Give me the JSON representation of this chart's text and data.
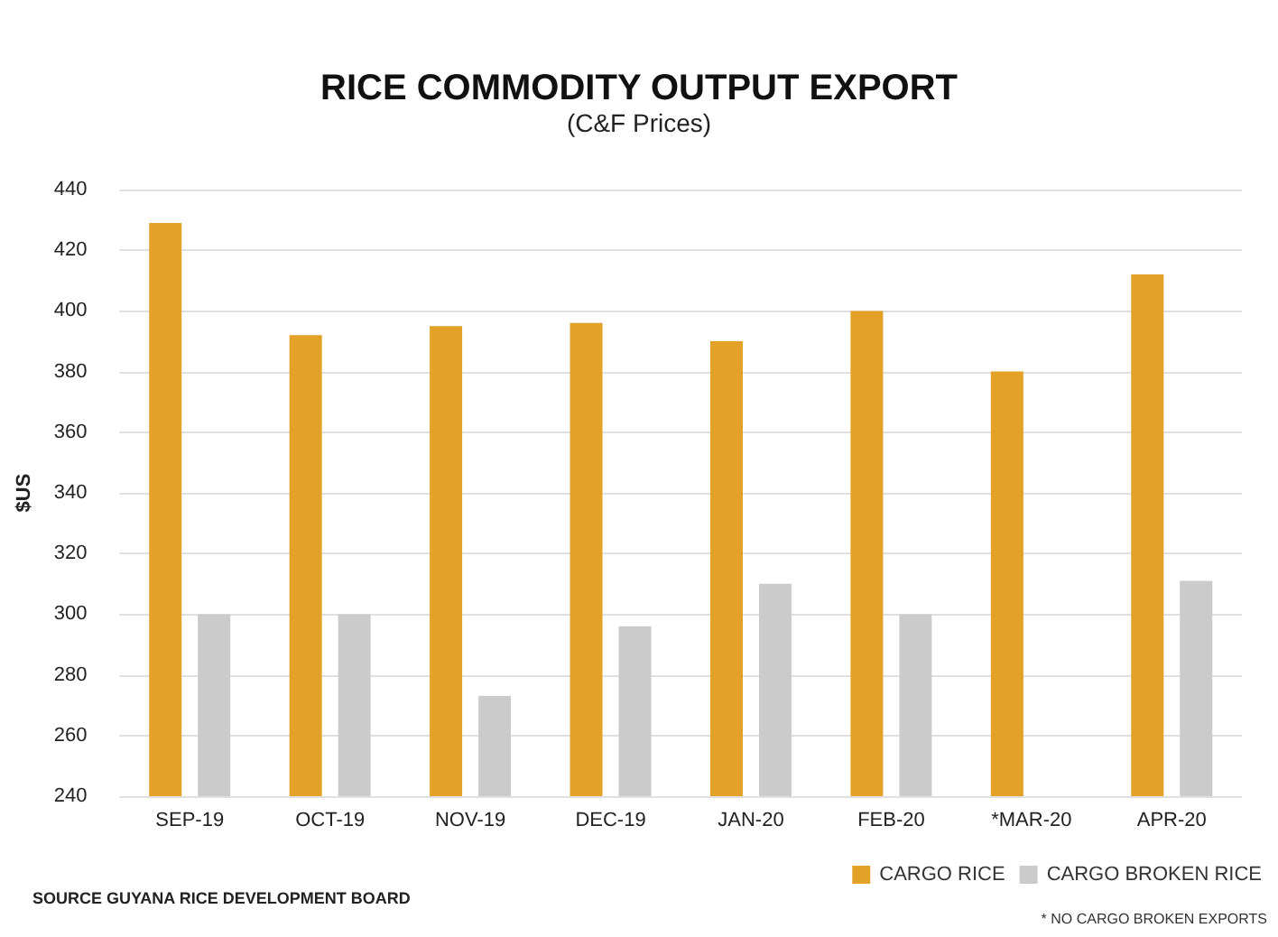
{
  "chart_data": {
    "type": "bar",
    "title": "RICE COMMODITY OUTPUT EXPORT",
    "subtitle": "(C&F Prices)",
    "ylabel": "$US",
    "categories": [
      "SEP-19",
      "OCT-19",
      "NOV-19",
      "DEC-19",
      "JAN-20",
      "FEB-20",
      "*MAR-20",
      "APR-20"
    ],
    "series": [
      {
        "name": "CARGO RICE",
        "color": "#e3a128",
        "values": [
          429,
          392,
          395,
          396,
          390,
          400,
          380,
          412
        ]
      },
      {
        "name": "CARGO BROKEN RICE",
        "color": "#cbcbcb",
        "values": [
          300,
          300,
          273,
          296,
          310,
          300,
          null,
          311
        ]
      }
    ],
    "ylim": [
      240,
      440
    ],
    "yticks": [
      240,
      260,
      280,
      300,
      320,
      340,
      360,
      380,
      400,
      420,
      440
    ],
    "grid": "y",
    "legend": "bottom right",
    "annotations": [
      "SOURCE GUYANA RICE DEVELOPMENT BOARD",
      "* NO CARGO BROKEN EXPORTS"
    ]
  }
}
